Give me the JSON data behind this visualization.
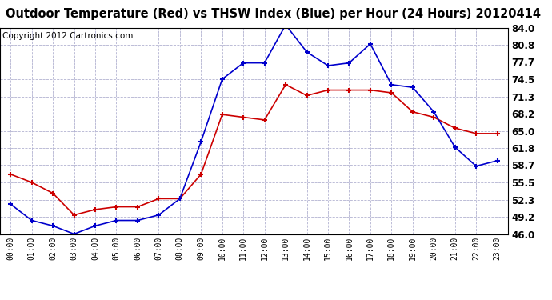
{
  "title": "Outdoor Temperature (Red) vs THSW Index (Blue) per Hour (24 Hours) 20120414",
  "copyright": "Copyright 2012 Cartronics.com",
  "hours": [
    "00:00",
    "01:00",
    "02:00",
    "03:00",
    "04:00",
    "05:00",
    "06:00",
    "07:00",
    "08:00",
    "09:00",
    "10:00",
    "11:00",
    "12:00",
    "13:00",
    "14:00",
    "15:00",
    "16:00",
    "17:00",
    "18:00",
    "19:00",
    "20:00",
    "21:00",
    "22:00",
    "23:00"
  ],
  "red_data": [
    57.0,
    55.5,
    53.5,
    49.5,
    50.5,
    51.0,
    51.0,
    52.5,
    52.5,
    57.0,
    68.0,
    67.5,
    67.0,
    73.5,
    71.5,
    72.5,
    72.5,
    72.5,
    72.0,
    68.5,
    67.5,
    65.5,
    64.5,
    64.5
  ],
  "blue_data": [
    51.5,
    48.5,
    47.5,
    46.0,
    47.5,
    48.5,
    48.5,
    49.5,
    52.5,
    63.0,
    74.5,
    77.5,
    77.5,
    84.5,
    79.5,
    77.0,
    77.5,
    81.0,
    73.5,
    73.0,
    68.5,
    62.0,
    58.5,
    59.5
  ],
  "red_color": "#cc0000",
  "blue_color": "#0000cc",
  "bg_color": "#ffffff",
  "grid_color": "#aaaacc",
  "yticks": [
    46.0,
    49.2,
    52.3,
    55.5,
    58.7,
    61.8,
    65.0,
    68.2,
    71.3,
    74.5,
    77.7,
    80.8,
    84.0
  ],
  "ylim": [
    46.0,
    84.0
  ],
  "title_fontsize": 10.5,
  "copyright_fontsize": 7.5
}
